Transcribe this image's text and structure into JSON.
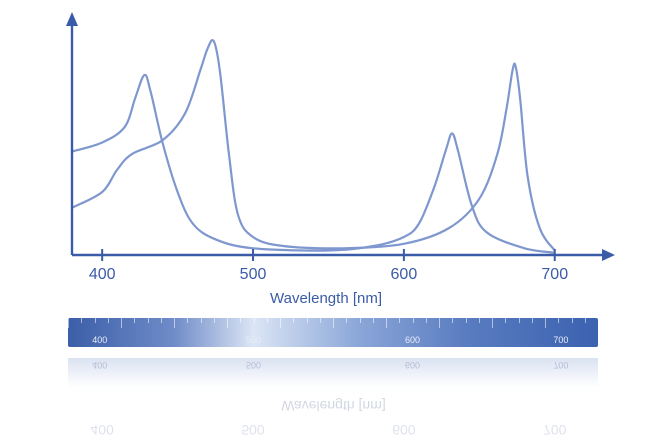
{
  "chart_data": {
    "type": "line",
    "title": "",
    "xlabel": "Wavelength [nm]",
    "ylabel": "",
    "xlim": [
      380,
      730
    ],
    "ylim": [
      0,
      1.0
    ],
    "xticks": [
      400,
      500,
      600,
      700
    ],
    "grid": false,
    "series": [
      {
        "points": [
          [
            380,
            0.46
          ],
          [
            400,
            0.5
          ],
          [
            415,
            0.57
          ],
          [
            422,
            0.7
          ],
          [
            428,
            0.8
          ],
          [
            432,
            0.73
          ],
          [
            440,
            0.5
          ],
          [
            450,
            0.28
          ],
          [
            460,
            0.14
          ],
          [
            475,
            0.07
          ],
          [
            500,
            0.03
          ],
          [
            550,
            0.02
          ],
          [
            580,
            0.04
          ],
          [
            600,
            0.08
          ],
          [
            610,
            0.14
          ],
          [
            620,
            0.3
          ],
          [
            628,
            0.47
          ],
          [
            632,
            0.54
          ],
          [
            636,
            0.46
          ],
          [
            645,
            0.22
          ],
          [
            655,
            0.1
          ],
          [
            680,
            0.03
          ],
          [
            700,
            0.01
          ]
        ]
      },
      {
        "points": [
          [
            380,
            0.21
          ],
          [
            400,
            0.28
          ],
          [
            410,
            0.38
          ],
          [
            420,
            0.45
          ],
          [
            440,
            0.51
          ],
          [
            455,
            0.63
          ],
          [
            465,
            0.82
          ],
          [
            470,
            0.92
          ],
          [
            474,
            0.95
          ],
          [
            478,
            0.82
          ],
          [
            484,
            0.45
          ],
          [
            490,
            0.18
          ],
          [
            500,
            0.08
          ],
          [
            520,
            0.04
          ],
          [
            560,
            0.03
          ],
          [
            600,
            0.05
          ],
          [
            630,
            0.12
          ],
          [
            650,
            0.25
          ],
          [
            662,
            0.45
          ],
          [
            668,
            0.65
          ],
          [
            672,
            0.82
          ],
          [
            674,
            0.84
          ],
          [
            677,
            0.7
          ],
          [
            682,
            0.35
          ],
          [
            690,
            0.12
          ],
          [
            700,
            0.02
          ]
        ]
      }
    ],
    "spectrum_strip": {
      "labels": [
        "400",
        "500",
        "600",
        "700"
      ]
    },
    "colors": {
      "axis": "#3a5ba8",
      "curve": "#7f97cf",
      "label": "#3a5ba8"
    }
  }
}
